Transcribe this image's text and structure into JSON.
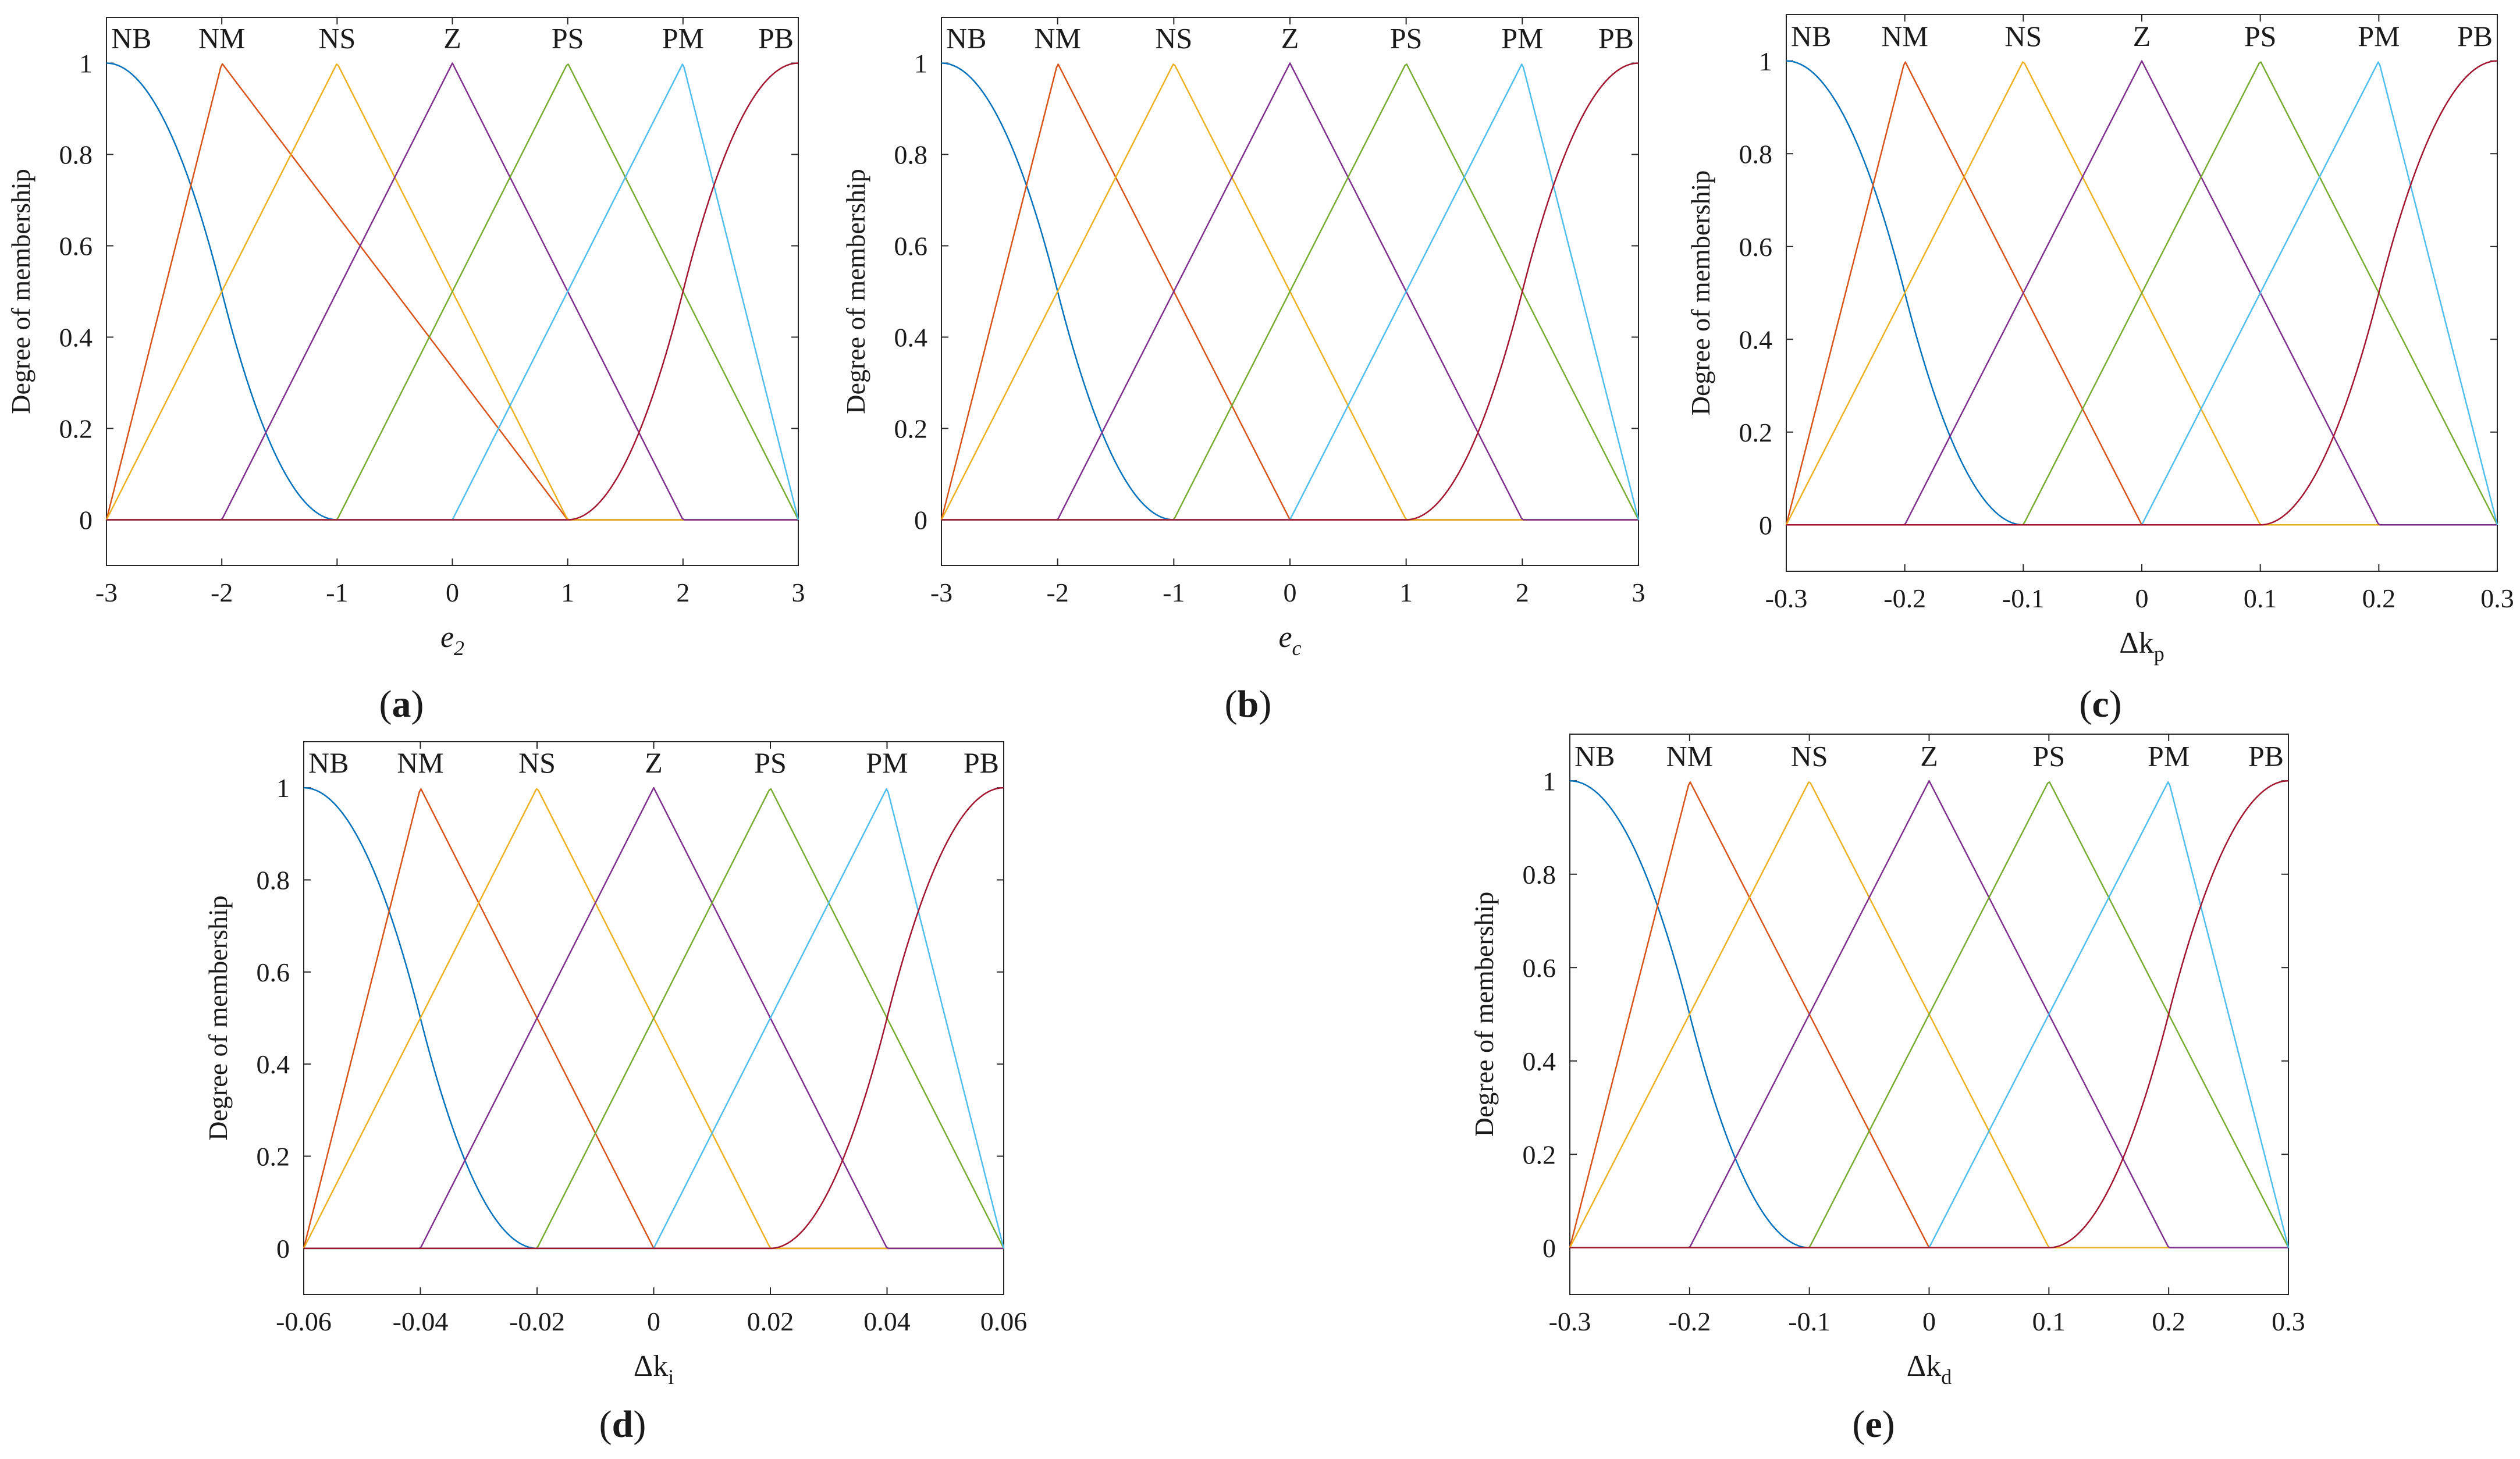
{
  "figure": {
    "panels": [
      {
        "letter": "a",
        "xlabel_main": "e",
        "xlabel_sub": "2",
        "xlabel_italic": true
      },
      {
        "letter": "b",
        "xlabel_main": "e",
        "xlabel_sub": "c",
        "xlabel_italic": true
      },
      {
        "letter": "c",
        "xlabel_main": "Δk",
        "xlabel_sub": "p",
        "xlabel_italic": false
      },
      {
        "letter": "d",
        "xlabel_main": "Δk",
        "xlabel_sub": "i",
        "xlabel_italic": false
      },
      {
        "letter": "e",
        "xlabel_main": "Δk",
        "xlabel_sub": "d",
        "xlabel_italic": false
      }
    ]
  },
  "chart_data": [
    {
      "type": "line",
      "panel": "a",
      "ylabel": "Degree of membership",
      "xlabel": "e2",
      "xlim": [
        -3,
        3
      ],
      "ylim": [
        -0.1,
        1.1
      ],
      "xticks": [
        "-3",
        "-2",
        "-1",
        "0",
        "1",
        "2",
        "3"
      ],
      "yticks": [
        "0",
        "0.2",
        "0.4",
        "0.6",
        "0.8",
        "1"
      ],
      "grid": false,
      "set_labels": [
        "NB",
        "NM",
        "NS",
        "Z",
        "PS",
        "PM",
        "PB"
      ],
      "series": [
        {
          "name": "NB",
          "shape": "z-shaped",
          "params": [
            -3,
            -1
          ],
          "color": "#0072BD"
        },
        {
          "name": "NM",
          "shape": "triangular",
          "params": [
            -3,
            -2,
            1
          ],
          "color": "#D95319"
        },
        {
          "name": "NS",
          "shape": "triangular",
          "params": [
            -3,
            -1,
            1
          ],
          "color": "#EDB120"
        },
        {
          "name": "Z",
          "shape": "triangular",
          "params": [
            -2,
            0,
            2
          ],
          "color": "#7E2F8E"
        },
        {
          "name": "PS",
          "shape": "triangular",
          "params": [
            -1,
            1,
            3
          ],
          "color": "#77AC30"
        },
        {
          "name": "PM",
          "shape": "triangular",
          "params": [
            0,
            2,
            3
          ],
          "color": "#4DBEEE"
        },
        {
          "name": "PB",
          "shape": "s-shaped",
          "params": [
            1,
            3
          ],
          "color": "#A2142F"
        }
      ]
    },
    {
      "type": "line",
      "panel": "b",
      "ylabel": "Degree of membership",
      "xlabel": "ec",
      "xlim": [
        -3,
        3
      ],
      "ylim": [
        -0.1,
        1.1
      ],
      "xticks": [
        "-3",
        "-2",
        "-1",
        "0",
        "1",
        "2",
        "3"
      ],
      "yticks": [
        "0",
        "0.2",
        "0.4",
        "0.6",
        "0.8",
        "1"
      ],
      "grid": false,
      "set_labels": [
        "NB",
        "NM",
        "NS",
        "Z",
        "PS",
        "PM",
        "PB"
      ],
      "series": [
        {
          "name": "NB",
          "shape": "z-shaped",
          "params": [
            -3,
            -1
          ],
          "color": "#0072BD"
        },
        {
          "name": "NM",
          "shape": "triangular",
          "params": [
            -3,
            -2,
            0
          ],
          "color": "#D95319"
        },
        {
          "name": "NS",
          "shape": "triangular",
          "params": [
            -3,
            -1,
            1
          ],
          "color": "#EDB120"
        },
        {
          "name": "Z",
          "shape": "triangular",
          "params": [
            -2,
            0,
            2
          ],
          "color": "#7E2F8E"
        },
        {
          "name": "PS",
          "shape": "triangular",
          "params": [
            -1,
            1,
            3
          ],
          "color": "#77AC30"
        },
        {
          "name": "PM",
          "shape": "triangular",
          "params": [
            0,
            2,
            3
          ],
          "color": "#4DBEEE"
        },
        {
          "name": "PB",
          "shape": "s-shaped",
          "params": [
            1,
            3
          ],
          "color": "#A2142F"
        }
      ]
    },
    {
      "type": "line",
      "panel": "c",
      "ylabel": "Degree of membership",
      "xlabel": "Δkp",
      "xlim": [
        -0.3,
        0.3
      ],
      "ylim": [
        -0.1,
        1.1
      ],
      "xticks": [
        "-0.3",
        "-0.2",
        "-0.1",
        "0",
        "0.1",
        "0.2",
        "0.3"
      ],
      "yticks": [
        "0",
        "0.2",
        "0.4",
        "0.6",
        "0.8",
        "1"
      ],
      "grid": false,
      "set_labels": [
        "NB",
        "NM",
        "NS",
        "Z",
        "PS",
        "PM",
        "PB"
      ],
      "series": [
        {
          "name": "NB",
          "shape": "z-shaped",
          "params": [
            -0.3,
            -0.1
          ],
          "color": "#0072BD"
        },
        {
          "name": "NM",
          "shape": "triangular",
          "params": [
            -0.3,
            -0.2,
            0
          ],
          "color": "#D95319"
        },
        {
          "name": "NS",
          "shape": "triangular",
          "params": [
            -0.3,
            -0.1,
            0.1
          ],
          "color": "#EDB120"
        },
        {
          "name": "Z",
          "shape": "triangular",
          "params": [
            -0.2,
            0,
            0.2
          ],
          "color": "#7E2F8E"
        },
        {
          "name": "PS",
          "shape": "triangular",
          "params": [
            -0.1,
            0.1,
            0.3
          ],
          "color": "#77AC30"
        },
        {
          "name": "PM",
          "shape": "triangular",
          "params": [
            0,
            0.2,
            0.3
          ],
          "color": "#4DBEEE"
        },
        {
          "name": "PB",
          "shape": "s-shaped",
          "params": [
            0.1,
            0.3
          ],
          "color": "#A2142F"
        }
      ]
    },
    {
      "type": "line",
      "panel": "d",
      "ylabel": "Degree of membership",
      "xlabel": "Δki",
      "xlim": [
        -0.06,
        0.06
      ],
      "ylim": [
        -0.1,
        1.1
      ],
      "xticks": [
        "-0.06",
        "-0.04",
        "-0.02",
        "0",
        "0.02",
        "0.04",
        "0.06"
      ],
      "yticks": [
        "0",
        "0.2",
        "0.4",
        "0.6",
        "0.8",
        "1"
      ],
      "grid": false,
      "set_labels": [
        "NB",
        "NM",
        "NS",
        "Z",
        "PS",
        "PM",
        "PB"
      ],
      "series": [
        {
          "name": "NB",
          "shape": "z-shaped",
          "params": [
            -0.06,
            -0.02
          ],
          "color": "#0072BD"
        },
        {
          "name": "NM",
          "shape": "triangular",
          "params": [
            -0.06,
            -0.04,
            0
          ],
          "color": "#D95319"
        },
        {
          "name": "NS",
          "shape": "triangular",
          "params": [
            -0.06,
            -0.02,
            0.02
          ],
          "color": "#EDB120"
        },
        {
          "name": "Z",
          "shape": "triangular",
          "params": [
            -0.04,
            0,
            0.04
          ],
          "color": "#7E2F8E"
        },
        {
          "name": "PS",
          "shape": "triangular",
          "params": [
            -0.02,
            0.02,
            0.06
          ],
          "color": "#77AC30"
        },
        {
          "name": "PM",
          "shape": "triangular",
          "params": [
            0,
            0.04,
            0.06
          ],
          "color": "#4DBEEE"
        },
        {
          "name": "PB",
          "shape": "s-shaped",
          "params": [
            0.02,
            0.06
          ],
          "color": "#A2142F"
        }
      ]
    },
    {
      "type": "line",
      "panel": "e",
      "ylabel": "Degree of membership",
      "xlabel": "Δkd",
      "xlim": [
        -0.3,
        0.3
      ],
      "ylim": [
        -0.1,
        1.1
      ],
      "xticks": [
        "-0.3",
        "-0.2",
        "-0.1",
        "0",
        "0.1",
        "0.2",
        "0.3"
      ],
      "yticks": [
        "0",
        "0.2",
        "0.4",
        "0.6",
        "0.8",
        "1"
      ],
      "grid": false,
      "set_labels": [
        "NB",
        "NM",
        "NS",
        "Z",
        "PS",
        "PM",
        "PB"
      ],
      "series": [
        {
          "name": "NB",
          "shape": "z-shaped",
          "params": [
            -0.3,
            -0.1
          ],
          "color": "#0072BD"
        },
        {
          "name": "NM",
          "shape": "triangular",
          "params": [
            -0.3,
            -0.2,
            0
          ],
          "color": "#D95319"
        },
        {
          "name": "NS",
          "shape": "triangular",
          "params": [
            -0.3,
            -0.1,
            0.1
          ],
          "color": "#EDB120"
        },
        {
          "name": "Z",
          "shape": "triangular",
          "params": [
            -0.2,
            0,
            0.2
          ],
          "color": "#7E2F8E"
        },
        {
          "name": "PS",
          "shape": "triangular",
          "params": [
            -0.1,
            0.1,
            0.3
          ],
          "color": "#77AC30"
        },
        {
          "name": "PM",
          "shape": "triangular",
          "params": [
            0,
            0.2,
            0.3
          ],
          "color": "#4DBEEE"
        },
        {
          "name": "PB",
          "shape": "s-shaped",
          "params": [
            0.1,
            0.3
          ],
          "color": "#A2142F"
        }
      ]
    }
  ]
}
